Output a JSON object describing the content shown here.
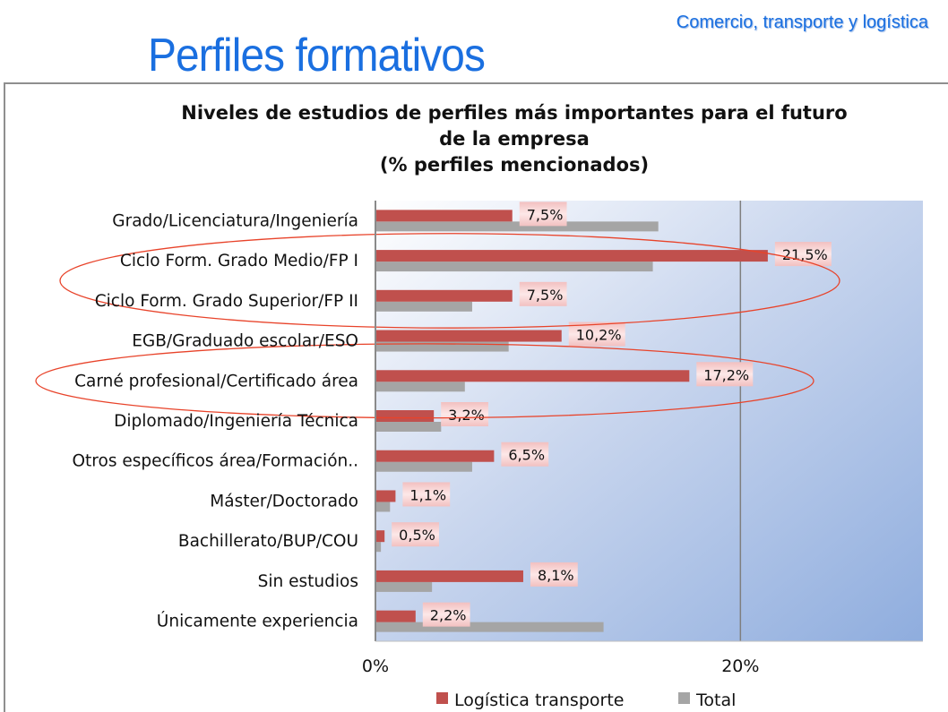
{
  "header": {
    "section": "Comercio, transporte y logística",
    "title": "Perfiles formativos"
  },
  "chart_data": {
    "type": "bar",
    "orientation": "horizontal",
    "title_lines": [
      "Niveles de estudios de perfiles más importantes para el futuro",
      "de la empresa",
      "(% perfiles mencionados)"
    ],
    "categories": [
      "Grado/Licenciatura/Ingeniería",
      "Ciclo Form. Grado Medio/FP I",
      "Ciclo Form. Grado Superior/FP II",
      "EGB/Graduado escolar/ESO",
      "Carné profesional/Certificado área",
      "Diplomado/Ingeniería Técnica",
      "Otros específicos área/Formación..",
      "Máster/Doctorado",
      "Bachillerato/BUP/COU",
      "Sin estudios",
      "Únicamente experiencia"
    ],
    "series": [
      {
        "name": "Logística transporte",
        "color": "#c0504d",
        "values": [
          7.5,
          21.5,
          7.5,
          10.2,
          17.2,
          3.2,
          6.5,
          1.1,
          0.5,
          8.1,
          2.2
        ],
        "labels": [
          "7,5%",
          "21,5%",
          "7,5%",
          "10,2%",
          "17,2%",
          "3,2%",
          "6,5%",
          "1,1%",
          "0,5%",
          "8,1%",
          "2,2%"
        ]
      },
      {
        "name": "Total",
        "color": "#a5a5a5",
        "values": [
          15.5,
          15.2,
          5.3,
          7.3,
          4.9,
          3.6,
          5.3,
          0.8,
          0.3,
          3.1,
          12.5
        ]
      }
    ],
    "xlim": [
      0,
      30
    ],
    "xticks": [
      0,
      20
    ],
    "xtick_labels": [
      "0%",
      "20%"
    ],
    "grid": "vertical major lines",
    "legend": "bottom",
    "highlight_ellipses": [
      [
        1,
        2
      ],
      [
        4
      ]
    ],
    "plot_background": "gradient light blue"
  }
}
